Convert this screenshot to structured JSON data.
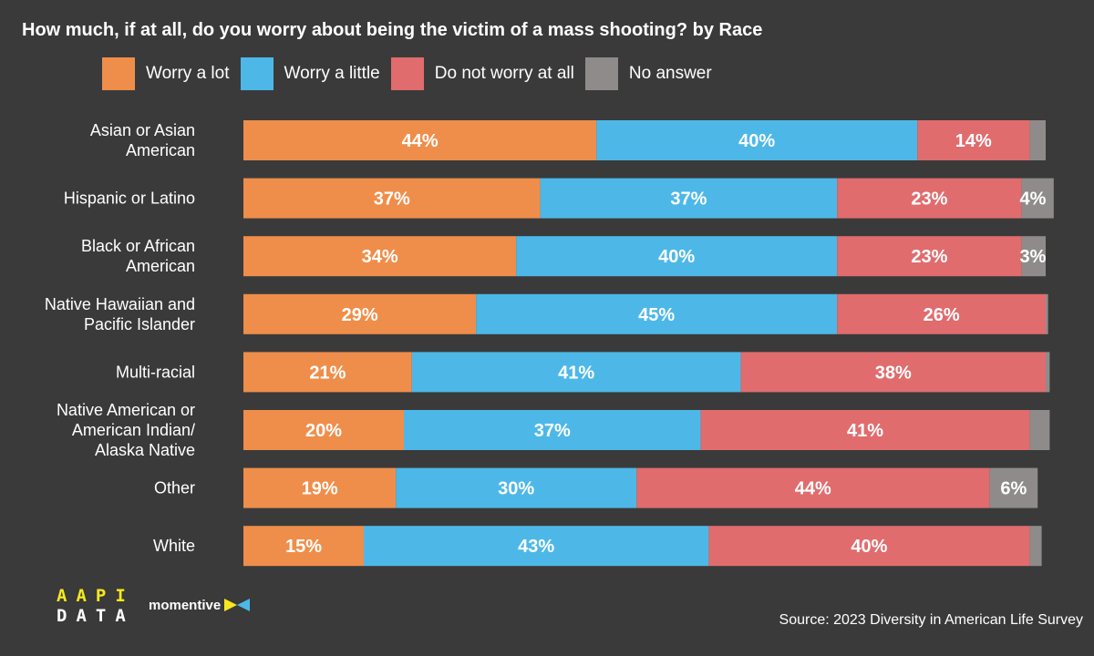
{
  "chart_data": {
    "type": "bar",
    "orientation": "horizontal",
    "stacked": true,
    "title": "How much, if at all, do you worry about being the victim of a mass shooting? by Race",
    "categories": [
      "Asian or Asian American",
      "Hispanic or Latino",
      "Black or African American",
      "Native Hawaiian and Pacific Islander",
      "Multi-racial",
      "Native American or American Indian/ Alaska Native",
      "Other",
      "White"
    ],
    "series": [
      {
        "name": "Worry a lot",
        "color": "#ef8e4a",
        "values": [
          44,
          37,
          34,
          29,
          21,
          20,
          19,
          15
        ]
      },
      {
        "name": "Worry a little",
        "color": "#4db8e8",
        "values": [
          40,
          37,
          40,
          45,
          41,
          37,
          30,
          43
        ]
      },
      {
        "name": "Do not worry at all",
        "color": "#e06c6e",
        "values": [
          14,
          23,
          23,
          26,
          38,
          41,
          44,
          40
        ]
      },
      {
        "name": "No answer",
        "color": "#908b8b",
        "values": [
          2,
          4,
          3,
          0.3,
          0.5,
          2.5,
          6,
          1.5
        ]
      }
    ],
    "data_labels": [
      [
        "44%",
        "40%",
        "14%",
        ""
      ],
      [
        "37%",
        "37%",
        "23%",
        "4%"
      ],
      [
        "34%",
        "40%",
        "23%",
        "3%"
      ],
      [
        "29%",
        "45%",
        "26%",
        ""
      ],
      [
        "21%",
        "41%",
        "38%",
        ""
      ],
      [
        "20%",
        "37%",
        "41%",
        ""
      ],
      [
        "19%",
        "30%",
        "44%",
        "6%"
      ],
      [
        "15%",
        "43%",
        "40%",
        ""
      ]
    ],
    "xlim": [
      0,
      100
    ],
    "legend_position": "top",
    "grid": false
  },
  "footer": {
    "logo_aapi_row1": "AAPI",
    "logo_aapi_row2": "DATA",
    "logo_momentive": "momentive",
    "source": "Source: 2023 Diversity in American Life Survey"
  }
}
